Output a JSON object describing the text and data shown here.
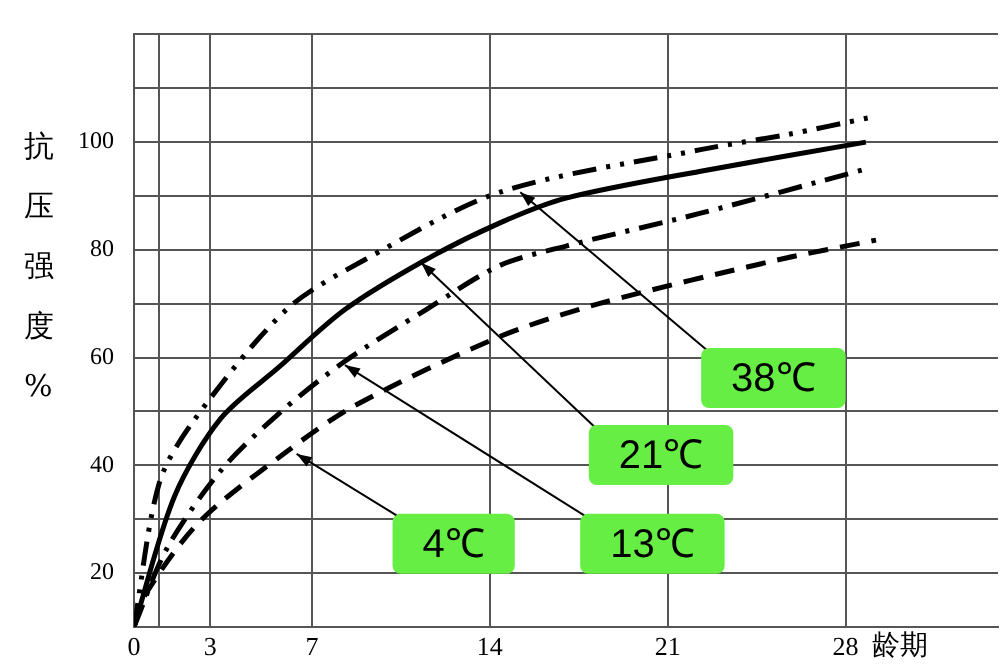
{
  "chart_data": {
    "type": "line",
    "ylabel": "抗压强度%",
    "xlabel": "龄期",
    "xlim": [
      0,
      34
    ],
    "xticks": [
      0,
      {
        "value": 1,
        "label": null
      },
      3,
      7,
      14,
      21,
      28
    ],
    "ylim": [
      10,
      120
    ],
    "yticks": [
      {
        "value": 10,
        "label": null
      },
      20,
      {
        "value": 30,
        "label": null
      },
      40,
      {
        "value": 50,
        "label": null
      },
      60,
      {
        "value": 70,
        "label": null
      },
      80,
      {
        "value": 90,
        "label": null
      },
      100,
      {
        "value": 110,
        "label": null
      },
      {
        "value": 120,
        "label": null
      }
    ],
    "grid": true,
    "legend": false,
    "marker": "none",
    "series": [
      {
        "color": "#000000",
        "line_style": "dashdotdot",
        "x": [
          0,
          1.0,
          2.4,
          6.0,
          9.1,
          14.4,
          22.3,
          25.7,
          29
        ],
        "values": [
          10,
          36.8,
          48.6,
          68.9,
          78.2,
          90.7,
          98.6,
          101.4,
          104.6
        ]
      },
      {
        "color": "#000000",
        "line_style": "solid",
        "x": [
          0,
          1.6,
          3.4,
          5.7,
          8.3,
          11.5,
          14.4,
          17,
          22.3,
          28.8
        ],
        "values": [
          10,
          34.3,
          48.6,
          58.2,
          68.9,
          78.2,
          85,
          89.6,
          94.6,
          100
        ]
      },
      {
        "color": "#000000",
        "line_style": "dashdot",
        "x": [
          0,
          1.3,
          3.4,
          5.7,
          8.3,
          11.5,
          14.4,
          17,
          22.3,
          28.8
        ],
        "values": [
          10,
          24.6,
          38.9,
          49.6,
          59.3,
          68.9,
          77.1,
          80.7,
          86.8,
          95
        ]
      },
      {
        "color": "#000000",
        "line_style": "dashed",
        "x": [
          0,
          0.5,
          2.6,
          6,
          8.7,
          14.4,
          18.3,
          25.4,
          29.2
        ],
        "values": [
          10,
          16.4,
          29.6,
          42.5,
          51.1,
          63.9,
          70,
          78.2,
          81.8
        ]
      }
    ],
    "annotations": [
      {
        "text": "38℃",
        "x": 15.2,
        "y": 90.7
      },
      {
        "text": "21℃",
        "x": 11.3,
        "y": 77.6
      },
      {
        "text": "13℃",
        "x": 8.3,
        "y": 58.6
      },
      {
        "text": "4℃",
        "x": 6.4,
        "y": 42.1
      }
    ]
  }
}
